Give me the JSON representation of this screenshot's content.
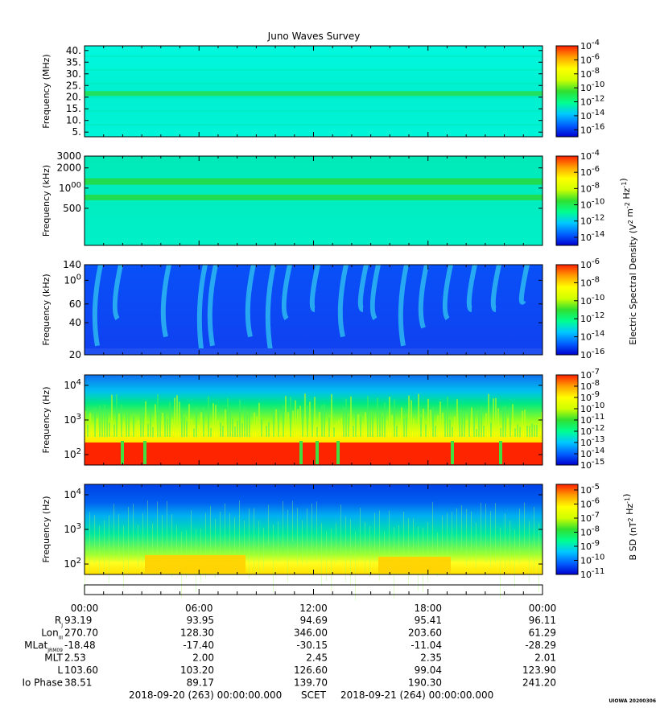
{
  "chart_data": [
    {
      "type": "heatmap",
      "title": "Juno Waves Survey",
      "ylabel": "Frequency (MHz)",
      "ylim": [
        3.0,
        42.0
      ],
      "yticks": [
        "40.",
        "35.",
        "30.",
        "25.",
        "20.",
        "15.",
        "10.",
        "5."
      ],
      "ytick_values": [
        40,
        35,
        30,
        25,
        20,
        15,
        10,
        5
      ],
      "colorbar_ticks": [
        "10-4",
        "10-6",
        "10-8",
        "10-10",
        "10-12",
        "10-14",
        "10-16"
      ],
      "colorbar_exponents": [
        -4,
        -6,
        -8,
        -10,
        -12,
        -14,
        -16
      ],
      "colorbar_range": [
        -17,
        -4
      ]
    },
    {
      "type": "heatmap",
      "ylabel": "Frequency (kHz)",
      "ylim": [
        140,
        3000
      ],
      "yscale": "log",
      "yticks": [
        "3000",
        "2000",
        "1000",
        "500"
      ],
      "ytick_values": [
        3000,
        2000,
        1000,
        500
      ],
      "colorbar_ticks": [
        "10-4",
        "10-6",
        "10-8",
        "10-10",
        "10-12",
        "10-14"
      ],
      "colorbar_exponents": [
        -4,
        -6,
        -8,
        -10,
        -12,
        -14
      ],
      "colorbar_range": [
        -15,
        -4
      ],
      "colorbar_label": "Electric Spectral Density (V2 m-2 Hz-1)"
    },
    {
      "type": "heatmap",
      "ylabel": "Frequency (kHz)",
      "ylim": [
        20,
        140
      ],
      "yscale": "log",
      "yticks": [
        "140",
        "100",
        "60",
        "40",
        "20"
      ],
      "ytick_values": [
        140,
        100,
        60,
        40,
        20
      ],
      "colorbar_ticks": [
        "10-6",
        "10-8",
        "10-10",
        "10-12",
        "10-14",
        "10-16"
      ],
      "colorbar_exponents": [
        -6,
        -8,
        -10,
        -12,
        -14,
        -16
      ],
      "colorbar_range": [
        -16,
        -6
      ]
    },
    {
      "type": "heatmap",
      "ylabel": "Frequency (Hz)",
      "ylim": [
        50,
        20000
      ],
      "yscale": "log",
      "yticks": [
        "104",
        "103",
        "102"
      ],
      "ytick_values": [
        10000,
        1000,
        100
      ],
      "colorbar_ticks": [
        "10-7",
        "10-8",
        "10-9",
        "10-10",
        "10-11",
        "10-12",
        "10-13",
        "10-14",
        "10-15"
      ],
      "colorbar_exponents": [
        -7,
        -8,
        -9,
        -10,
        -11,
        -12,
        -13,
        -14,
        -15
      ],
      "colorbar_range": [
        -15,
        -7
      ]
    },
    {
      "type": "heatmap",
      "ylabel": "Frequency (Hz)",
      "ylim": [
        50,
        20000
      ],
      "yscale": "log",
      "yticks": [
        "104",
        "103",
        "102"
      ],
      "ytick_values": [
        10000,
        1000,
        100
      ],
      "colorbar_ticks": [
        "10-5",
        "10-6",
        "10-7",
        "10-8",
        "10-9",
        "10-10",
        "10-11"
      ],
      "colorbar_exponents": [
        -5,
        -6,
        -7,
        -8,
        -9,
        -10,
        -11
      ],
      "colorbar_range": [
        -11,
        -4.6
      ],
      "colorbar_label": "B SD (nT2 Hz-1)"
    }
  ],
  "x_ticks": [
    "00:00",
    "06:00",
    "12:00",
    "18:00",
    "00:00"
  ],
  "ephemeris": [
    {
      "label": "R",
      "sub": "J",
      "values": [
        "93.19",
        "93.95",
        "94.69",
        "95.41",
        "96.11"
      ]
    },
    {
      "label": "Lon",
      "sub": "III",
      "values": [
        "270.70",
        "128.30",
        "346.00",
        "203.60",
        "61.29"
      ]
    },
    {
      "label": "MLat",
      "sub": "JRM09",
      "values": [
        "-18.48",
        "-17.40",
        "-30.15",
        "-11.04",
        "-28.29"
      ]
    },
    {
      "label": "MLT",
      "sub": "",
      "values": [
        "2.53",
        "2.00",
        "2.45",
        "2.35",
        "2.01"
      ]
    },
    {
      "label": "L",
      "sub": "",
      "values": [
        "103.60",
        "103.20",
        "126.60",
        "99.04",
        "123.90"
      ]
    },
    {
      "label": "Io Phase",
      "sub": "",
      "values": [
        "38.51",
        "89.17",
        "139.70",
        "190.30",
        "241.20"
      ]
    }
  ],
  "footer": {
    "start": "2018-09-20 (263) 00:00:00.000",
    "scet": "SCET",
    "end": "2018-09-21 (264) 00:00:00.000",
    "stamp": "UIOWA 20200306"
  },
  "colors": {
    "colormap": [
      "#0000d0",
      "#0060ff",
      "#00c8ff",
      "#00ff90",
      "#30e030",
      "#d0ff00",
      "#ffff00",
      "#ffa000",
      "#ff2000"
    ],
    "background": "#ffffff"
  }
}
